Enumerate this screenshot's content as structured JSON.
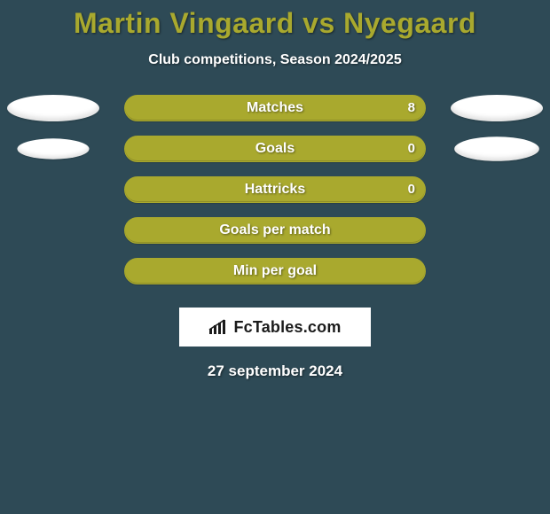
{
  "title": "Martin Vingaard vs Nyegaard",
  "subtitle": "Club competitions, Season 2024/2025",
  "date": "27 september 2024",
  "colors": {
    "page_bg": "#2e4a56",
    "title_color": "#a9a92e",
    "subtitle_color": "#ffffff",
    "date_color": "#ffffff",
    "bar_color": "#a9a92e",
    "bar_border": "#a9a92e",
    "label_color": "#ffffff",
    "value_color": "#ffffff",
    "avatar_color": "#ffffff",
    "badge_bg": "#ffffff",
    "badge_text_color": "#1b1b1b"
  },
  "rows": [
    {
      "label": "Matches",
      "value_right": "8",
      "fill_pct": 100,
      "show_avatars": true,
      "avatar_left_scale": 1.0,
      "avatar_right_scale": 1.0
    },
    {
      "label": "Goals",
      "value_right": "0",
      "fill_pct": 100,
      "show_avatars": true,
      "avatar_left_scale": 0.78,
      "avatar_right_scale": 0.92
    },
    {
      "label": "Hattricks",
      "value_right": "0",
      "fill_pct": 100,
      "show_avatars": false
    },
    {
      "label": "Goals per match",
      "value_right": "",
      "fill_pct": 100,
      "show_avatars": false
    },
    {
      "label": "Min per goal",
      "value_right": "",
      "fill_pct": 100,
      "show_avatars": false
    }
  ],
  "badge": {
    "text": "FcTables.com"
  },
  "typography": {
    "title_fontsize": 32,
    "subtitle_fontsize": 16,
    "label_fontsize": 16,
    "value_fontsize": 15,
    "date_fontsize": 17,
    "badge_fontsize": 18
  }
}
